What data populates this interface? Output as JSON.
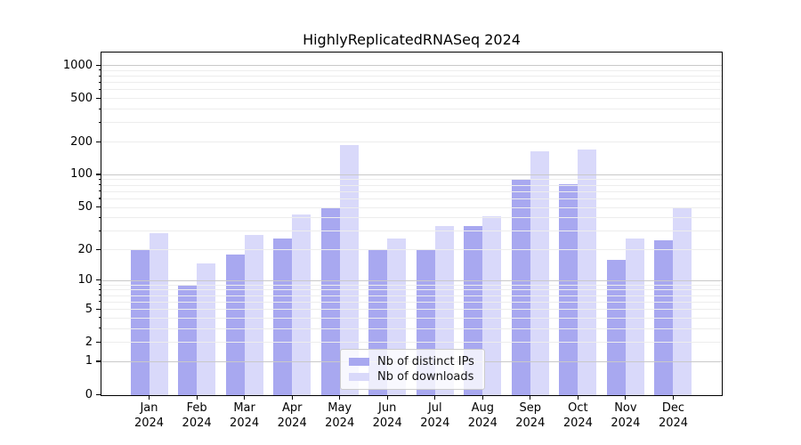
{
  "title": "HighlyReplicatedRNASeq 2024",
  "legend": {
    "items": [
      {
        "label": "Nb of distinct IPs",
        "color": "#a8a8f0"
      },
      {
        "label": "Nb of downloads",
        "color": "#d9d9fa"
      }
    ]
  },
  "chart_data": {
    "type": "bar",
    "title": "HighlyReplicatedRNASeq 2024",
    "categories": [
      "Jan 2024",
      "Feb 2024",
      "Mar 2024",
      "Apr 2024",
      "May 2024",
      "Jun 2024",
      "Jul 2024",
      "Aug 2024",
      "Sep 2024",
      "Oct 2024",
      "Nov 2024",
      "Dec 2024"
    ],
    "series": [
      {
        "name": "Nb of distinct IPs",
        "color": "#a8a8f0",
        "values": [
          20,
          9,
          18,
          26,
          50,
          20,
          20,
          34,
          90,
          82,
          16,
          25
        ]
      },
      {
        "name": "Nb of downloads",
        "color": "#d9d9fa",
        "values": [
          29,
          15,
          28,
          43,
          190,
          26,
          34,
          42,
          166,
          172,
          26,
          50
        ]
      }
    ],
    "xlabel": "",
    "ylabel": "",
    "y_scale": "log10(1+x)",
    "ylim": [
      0,
      1300
    ],
    "y_ticks": [
      0,
      1,
      2,
      5,
      10,
      20,
      50,
      100,
      200,
      500,
      1000
    ],
    "y_major_gridlines": [
      1,
      10,
      100,
      1000
    ],
    "grid": true,
    "legend_position": "inside-bottom-center"
  },
  "colors": {
    "grid_major": "#c9c9c9",
    "grid_minor": "#ededed",
    "spine": "#000000",
    "text": "#000000"
  }
}
